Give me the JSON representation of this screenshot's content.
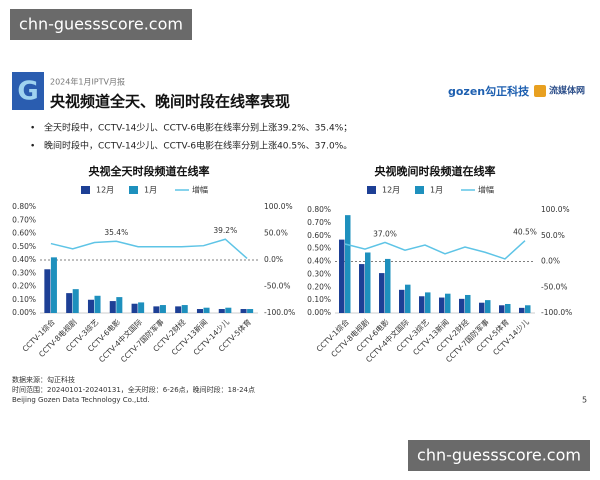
{
  "watermark": {
    "top": "chn-guessscore.com",
    "bottom": "chn-guessscore.com"
  },
  "header": {
    "report": "2024年1月IPTV月报",
    "title": "央视频道全天、晚间时段在线率表现",
    "logo_left": "G",
    "logo_brand": "gozen勾正科技",
    "logo_partner": "流媒体网",
    "bullets": [
      "全天时段中，CCTV-14少儿、CCTV-6电影在线率分别上涨39.2%、35.4%；",
      "晚间时段中，CCTV-14少儿、CCTV-6电影在线率分别上涨40.5%、37.0%。"
    ]
  },
  "chart_data": [
    {
      "type": "bar",
      "title": "央视全天时段频道在线率",
      "categories": [
        "CCTV-1综合",
        "CCTV-8电视剧",
        "CCTV-3综艺",
        "CCTV-6电影",
        "CCTV-4中文国际",
        "CCTV-7国防军事",
        "CCTV-2财经",
        "CCTV-13新闻",
        "CCTV-14少儿",
        "CCTV-5体育"
      ],
      "series": [
        {
          "name": "12月",
          "type": "bar",
          "color": "#1d3f95",
          "values": [
            0.33,
            0.15,
            0.1,
            0.09,
            0.07,
            0.05,
            0.05,
            0.03,
            0.03,
            0.03
          ]
        },
        {
          "name": "1月",
          "type": "bar",
          "color": "#1e90bd",
          "values": [
            0.42,
            0.18,
            0.13,
            0.12,
            0.08,
            0.06,
            0.06,
            0.04,
            0.04,
            0.03
          ]
        },
        {
          "name": "增幅",
          "type": "line",
          "axis": "y2",
          "color": "#5ec4e6",
          "values": [
            31,
            21,
            33,
            35.4,
            25,
            25,
            25,
            27,
            39.2,
            3
          ],
          "value_labels": [
            null,
            null,
            null,
            "35.4%",
            null,
            null,
            null,
            null,
            "39.2%",
            null
          ]
        }
      ],
      "ylim": [
        0,
        0.8
      ],
      "yticks": [
        {
          "value": 0,
          "label": "0.00%"
        },
        {
          "value": 0.1,
          "label": "0.10%"
        },
        {
          "value": 0.2,
          "label": "0.20%"
        },
        {
          "value": 0.3,
          "label": "0.30%"
        },
        {
          "value": 0.4,
          "label": "0.40%"
        },
        {
          "value": 0.5,
          "label": "0.50%"
        },
        {
          "value": 0.6,
          "label": "0.60%"
        },
        {
          "value": 0.7,
          "label": "0.70%"
        },
        {
          "value": 0.8,
          "label": "0.80%"
        }
      ],
      "y2lim": [
        -100,
        100
      ],
      "y2ticks": [
        {
          "value": -100,
          "label": "-100.0%"
        },
        {
          "value": -50,
          "label": "-50.0%"
        },
        {
          "value": 0,
          "label": "0.0%"
        },
        {
          "value": 50,
          "label": "50.0%"
        },
        {
          "value": 100,
          "label": "100.0%"
        }
      ],
      "y2_zero_line": true,
      "legend": "top"
    },
    {
      "type": "bar",
      "title": "央视晚间时段频道在线率",
      "categories": [
        "CCTV-1综合",
        "CCTV-8电视剧",
        "CCTV-6电影",
        "CCTV-4中文国际",
        "CCTV-3综艺",
        "CCTV-13新闻",
        "CCTV-2财经",
        "CCTV-7国防军事",
        "CCTV-5体育",
        "CCTV-14少儿"
      ],
      "series": [
        {
          "name": "12月",
          "type": "bar",
          "color": "#1d3f95",
          "values": [
            0.57,
            0.38,
            0.31,
            0.18,
            0.13,
            0.12,
            0.11,
            0.08,
            0.06,
            0.04
          ]
        },
        {
          "name": "1月",
          "type": "bar",
          "color": "#1e90bd",
          "values": [
            0.76,
            0.47,
            0.42,
            0.22,
            0.16,
            0.15,
            0.14,
            0.1,
            0.07,
            0.06
          ]
        },
        {
          "name": "增幅",
          "type": "line",
          "axis": "y2",
          "color": "#5ec4e6",
          "values": [
            34,
            24,
            37.0,
            22,
            32,
            15,
            28,
            18,
            5,
            40.5
          ],
          "value_labels": [
            null,
            null,
            "37.0%",
            null,
            null,
            null,
            null,
            null,
            null,
            "40.5%"
          ]
        }
      ],
      "ylim": [
        0,
        0.8
      ],
      "yticks": [
        {
          "value": 0,
          "label": "0.00%"
        },
        {
          "value": 0.1,
          "label": "0.10%"
        },
        {
          "value": 0.2,
          "label": "0.20%"
        },
        {
          "value": 0.3,
          "label": "0.30%"
        },
        {
          "value": 0.4,
          "label": "0.40%"
        },
        {
          "value": 0.5,
          "label": "0.50%"
        },
        {
          "value": 0.6,
          "label": "0.60%"
        },
        {
          "value": 0.7,
          "label": "0.70%"
        },
        {
          "value": 0.8,
          "label": "0.80%"
        }
      ],
      "y2lim": [
        -100,
        100
      ],
      "y2ticks": [
        {
          "value": -100,
          "label": "-100.0%"
        },
        {
          "value": -50,
          "label": "-50.0%"
        },
        {
          "value": 0,
          "label": "0.0%"
        },
        {
          "value": 50,
          "label": "50.0%"
        },
        {
          "value": 100,
          "label": "100.0%"
        }
      ],
      "y2_zero_line": true,
      "legend": "top"
    }
  ],
  "footer": {
    "source": "数据来源：勾正科技",
    "period": "时间范围：20240101-20240131，全天时段：6-26点，晚间时段：18-24点",
    "company": "Beijing Gozen Data Technology Co.,Ltd.",
    "page": "5"
  }
}
